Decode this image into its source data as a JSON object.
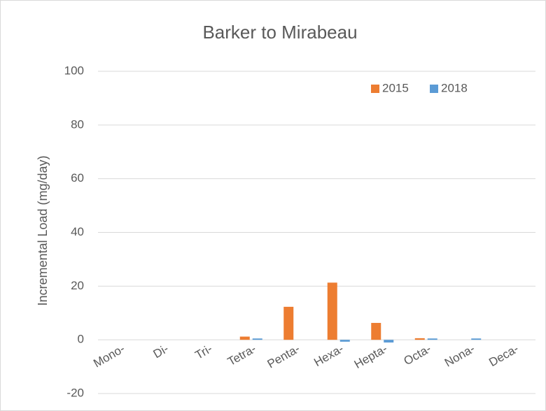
{
  "chart_data": {
    "type": "bar",
    "title": "Barker to Mirabeau",
    "y_label": "Incremental Load (mg/day)",
    "categories": [
      "Mono-",
      "Di-",
      "Tri-",
      "Tetra-",
      "Penta-",
      "Hexa-",
      "Hepta-",
      "Octa-",
      "Nona-",
      "Deca-"
    ],
    "series": [
      {
        "name": "2015",
        "color": "#ed7d31",
        "values": [
          0,
          0,
          0,
          1.2,
          12.3,
          21.3,
          6.3,
          0.6,
          0,
          0
        ]
      },
      {
        "name": "2018",
        "color": "#5b9bd5",
        "values": [
          0,
          0,
          0,
          0.5,
          0,
          -0.7,
          -1,
          0.5,
          0.5,
          0
        ]
      }
    ],
    "ylim": [
      -20,
      100
    ],
    "yticks": [
      -20,
      0,
      20,
      40,
      60,
      80,
      100
    ],
    "grid": true,
    "legend": "top-right"
  }
}
